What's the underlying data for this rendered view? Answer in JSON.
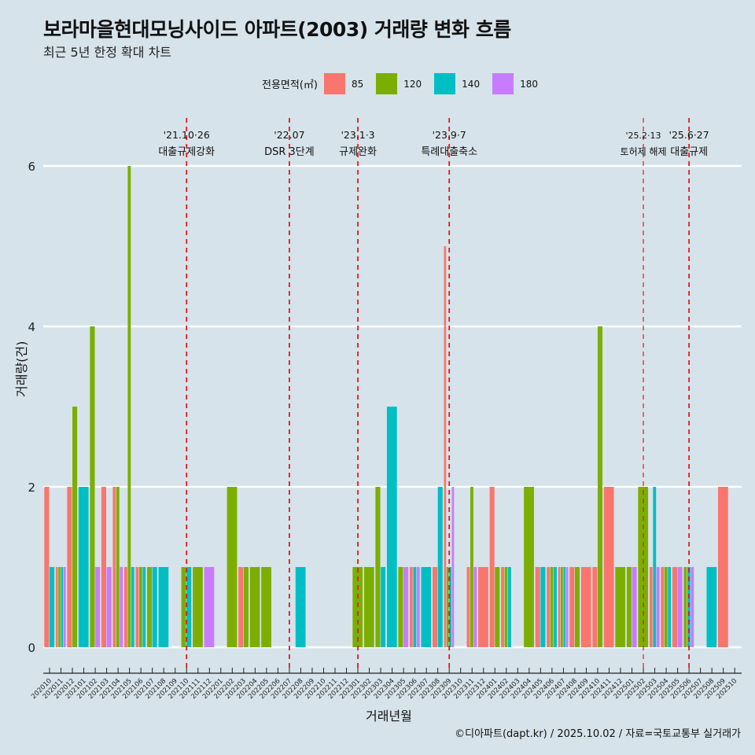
{
  "title": "보라마을현대모닝사이드 아파트(2003) 거래량 변화 흐름",
  "subtitle": "최근 5년 한정 확대 차트",
  "footer": "©디아파트(dapt.kr) / 2025.10.02 / 자료=국토교통부 실거래가",
  "legend": {
    "title": "전용면적(㎡)",
    "items": [
      {
        "label": "85",
        "color": "#F8766D"
      },
      {
        "label": "120",
        "color": "#7CAE00"
      },
      {
        "label": "140",
        "color": "#00BFC4"
      },
      {
        "label": "180",
        "color": "#C77CFF"
      }
    ]
  },
  "chart_data": {
    "type": "bar",
    "title": "보라마을현대모닝사이드 아파트(2003) 거래량 변화 흐름",
    "subtitle": "최근 5년 한정 확대 차트",
    "xlabel": "거래년월",
    "ylabel": "거래량(건)",
    "ylim": [
      0,
      6.2
    ],
    "yticks": [
      0,
      2,
      4,
      6
    ],
    "grid": true,
    "legend_position": "top",
    "bar_mode": "dodge",
    "categories": [
      "202010",
      "202011",
      "202012",
      "202101",
      "202102",
      "202103",
      "202104",
      "202105",
      "202106",
      "202107",
      "202108",
      "202109",
      "202110",
      "202111",
      "202112",
      "202201",
      "202202",
      "202203",
      "202204",
      "202205",
      "202206",
      "202207",
      "202208",
      "202209",
      "202210",
      "202211",
      "202212",
      "202301",
      "202302",
      "202303",
      "202304",
      "202305",
      "202306",
      "202307",
      "202308",
      "202309",
      "202310",
      "202311",
      "202312",
      "202401",
      "202402",
      "202403",
      "202404",
      "202405",
      "202406",
      "202407",
      "202408",
      "202409",
      "202410",
      "202411",
      "202412",
      "202501",
      "202502",
      "202503",
      "202504",
      "202505",
      "202506",
      "202507",
      "202508",
      "202509",
      "202510"
    ],
    "series": [
      {
        "name": "85",
        "values": [
          2,
          1,
          2,
          0,
          0,
          2,
          2,
          1,
          1,
          0,
          0,
          0,
          0,
          0,
          0,
          0,
          0,
          1,
          0,
          0,
          0,
          0,
          0,
          0,
          0,
          0,
          0,
          0,
          0,
          0,
          0,
          0,
          1,
          0,
          1,
          5,
          0,
          1,
          1,
          2,
          1,
          0,
          0,
          1,
          1,
          1,
          1,
          1,
          1,
          2,
          0,
          0,
          0,
          1,
          1,
          1,
          0,
          0,
          0,
          2,
          0
        ]
      },
      {
        "name": "120",
        "values": [
          0,
          1,
          3,
          0,
          4,
          0,
          2,
          6,
          1,
          1,
          0,
          0,
          1,
          1,
          0,
          0,
          2,
          1,
          1,
          1,
          0,
          0,
          0,
          0,
          0,
          0,
          0,
          1,
          1,
          2,
          0,
          1,
          0,
          0,
          0,
          1,
          0,
          2,
          0,
          1,
          1,
          0,
          2,
          0,
          1,
          1,
          1,
          0,
          4,
          0,
          1,
          1,
          2,
          0,
          1,
          0,
          1,
          0,
          0,
          0,
          0
        ]
      },
      {
        "name": "140",
        "values": [
          1,
          1,
          0,
          2,
          0,
          0,
          0,
          1,
          1,
          1,
          1,
          0,
          1,
          0,
          0,
          0,
          0,
          0,
          0,
          0,
          0,
          0,
          1,
          0,
          0,
          0,
          0,
          0,
          0,
          1,
          3,
          0,
          1,
          1,
          2,
          1,
          0,
          0,
          0,
          0,
          1,
          0,
          0,
          1,
          1,
          1,
          0,
          0,
          0,
          0,
          0,
          0,
          0,
          2,
          1,
          0,
          1,
          0,
          1,
          0,
          0
        ]
      },
      {
        "name": "180",
        "values": [
          0,
          1,
          0,
          0,
          1,
          1,
          1,
          0,
          0,
          0,
          0,
          0,
          0,
          0,
          1,
          0,
          0,
          0,
          0,
          0,
          0,
          0,
          0,
          0,
          0,
          0,
          0,
          0,
          0,
          0,
          0,
          1,
          1,
          0,
          0,
          2,
          0,
          1,
          0,
          0,
          0,
          0,
          0,
          0,
          0,
          1,
          0,
          0,
          0,
          0,
          0,
          1,
          0,
          1,
          0,
          1,
          1,
          0,
          0,
          0,
          0
        ]
      }
    ],
    "annotations": [
      {
        "month": "202110",
        "date": "'21.10·26",
        "label": "대출규제강화"
      },
      {
        "month": "202207",
        "date": "'22.07",
        "label": "DSR 3단계"
      },
      {
        "month": "202301",
        "date": "'23.1·3",
        "label": "규제완화"
      },
      {
        "month": "202309",
        "date": "'23.9·7",
        "label": "특례대출축소"
      },
      {
        "month": "202502",
        "date": "'25.2·13",
        "label": "토허제 해제"
      },
      {
        "month": "202506",
        "date": "'25.6·27",
        "label": "대출규제"
      }
    ]
  }
}
